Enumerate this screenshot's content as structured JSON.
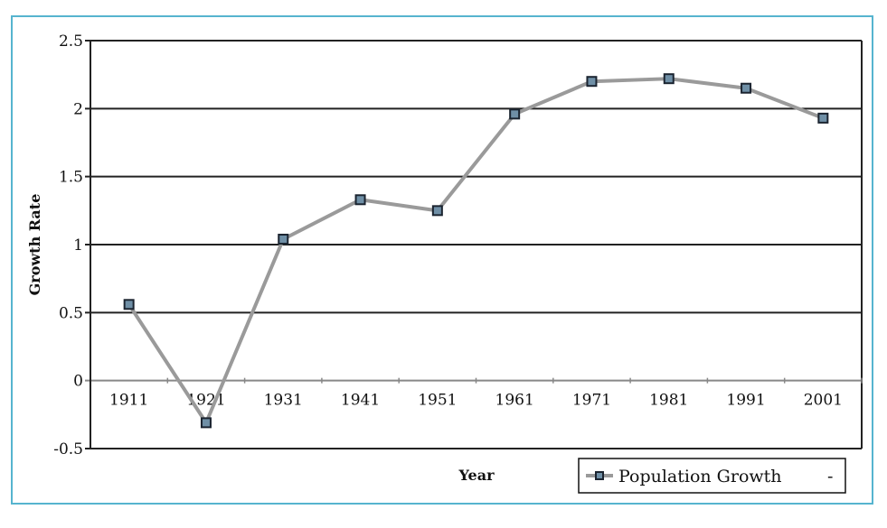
{
  "chart_data": {
    "type": "line",
    "title": "",
    "xlabel": "Year",
    "ylabel": "Growth Rate",
    "categories": [
      "1911",
      "1921",
      "1931",
      "1941",
      "1951",
      "1961",
      "1971",
      "1981",
      "1991",
      "2001"
    ],
    "series": [
      {
        "name": "Population Growth",
        "values": [
          0.56,
          -0.31,
          1.04,
          1.33,
          1.25,
          1.96,
          2.2,
          2.22,
          2.15,
          1.93
        ]
      }
    ],
    "y_ticks": [
      "2.5",
      "2",
      "1.5",
      "1",
      "0.5",
      "0",
      "-0.5"
    ],
    "ylim": [
      -0.5,
      2.5
    ],
    "grid": "horizontal",
    "legend_position": "bottom-right"
  },
  "legend": {
    "label": "Population Growth",
    "trailing": "-"
  },
  "colors": {
    "frame_border": "#56b4cf",
    "line": "#9a9a9a",
    "marker_fill": "#6f8fa6",
    "marker_border": "#1b2430",
    "grid": "#222222"
  }
}
